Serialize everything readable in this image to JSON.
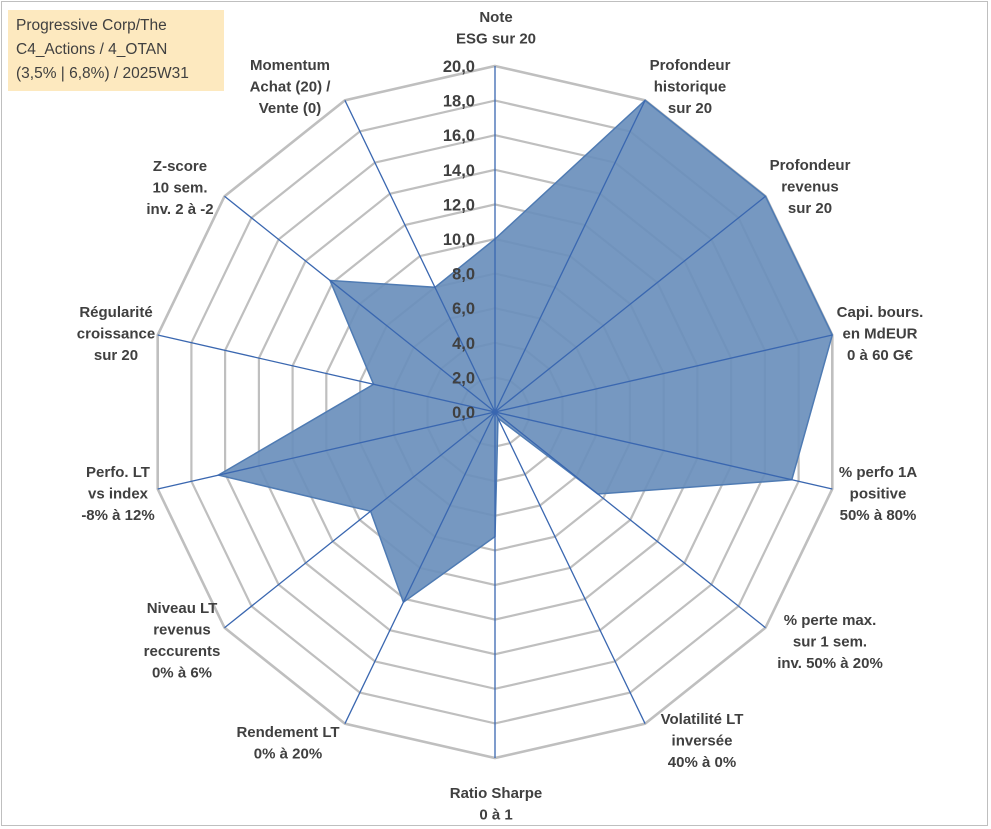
{
  "chart_data": {
    "type": "radar",
    "title_lines": [
      "Progressive Corp/The",
      "C4_Actions / 4_OTAN",
      "(3,5% | 6,8%) / 2025W31"
    ],
    "axes": [
      {
        "label": [
          "Note",
          "ESG sur 20"
        ],
        "value": 10.0
      },
      {
        "label": [
          "Profondeur",
          "historique",
          "sur 20"
        ],
        "value": 20.0
      },
      {
        "label": [
          "Profondeur",
          "revenus",
          "sur 20"
        ],
        "value": 20.0
      },
      {
        "label": [
          "Capi. bours.",
          "en MdEUR",
          "0 à 60 G€"
        ],
        "value": 20.0
      },
      {
        "label": [
          "% perfo 1A",
          "positive",
          "50% à 80%"
        ],
        "value": 17.6
      },
      {
        "label": [
          "% perte max.",
          "sur 1 sem.",
          "inv. 50% à 20%"
        ],
        "value": 7.6
      },
      {
        "label": [
          "Volatilité LT",
          "inversée",
          "40% à 0%"
        ],
        "value": 0.4
      },
      {
        "label": [
          "Ratio Sharpe",
          "0 à 1"
        ],
        "value": 7.2
      },
      {
        "label": [
          "Rendement LT",
          "0% à 20%"
        ],
        "value": 12.2
      },
      {
        "label": [
          "Niveau LT",
          "revenus",
          "reccurents",
          "0% à 6%"
        ],
        "value": 9.2
      },
      {
        "label": [
          "Perfo. LT",
          "vs index",
          "-8% à 12%"
        ],
        "value": 16.4
      },
      {
        "label": [
          "Régularité",
          "croissance",
          "sur 20"
        ],
        "value": 7.2
      },
      {
        "label": [
          "Z-score",
          "10 sem.",
          "inv. 2 à -2"
        ],
        "value": 12.2
      },
      {
        "label": [
          "Momentum",
          "Achat (20) /",
          "Vente (0)"
        ],
        "value": 8.0
      }
    ],
    "range": [
      0,
      20
    ],
    "tick_step": 2,
    "tick_labels": [
      "0,0",
      "2,0",
      "4,0",
      "6,0",
      "8,0",
      "10,0",
      "12,0",
      "14,0",
      "16,0",
      "18,0",
      "20,0"
    ],
    "fill_color": "#6a8fbc",
    "stroke_color": "#4f7bb3",
    "spoke_color": "#3a67b0",
    "grid_color": "#bfbfbf",
    "legend_bg": "#fde9bf"
  }
}
